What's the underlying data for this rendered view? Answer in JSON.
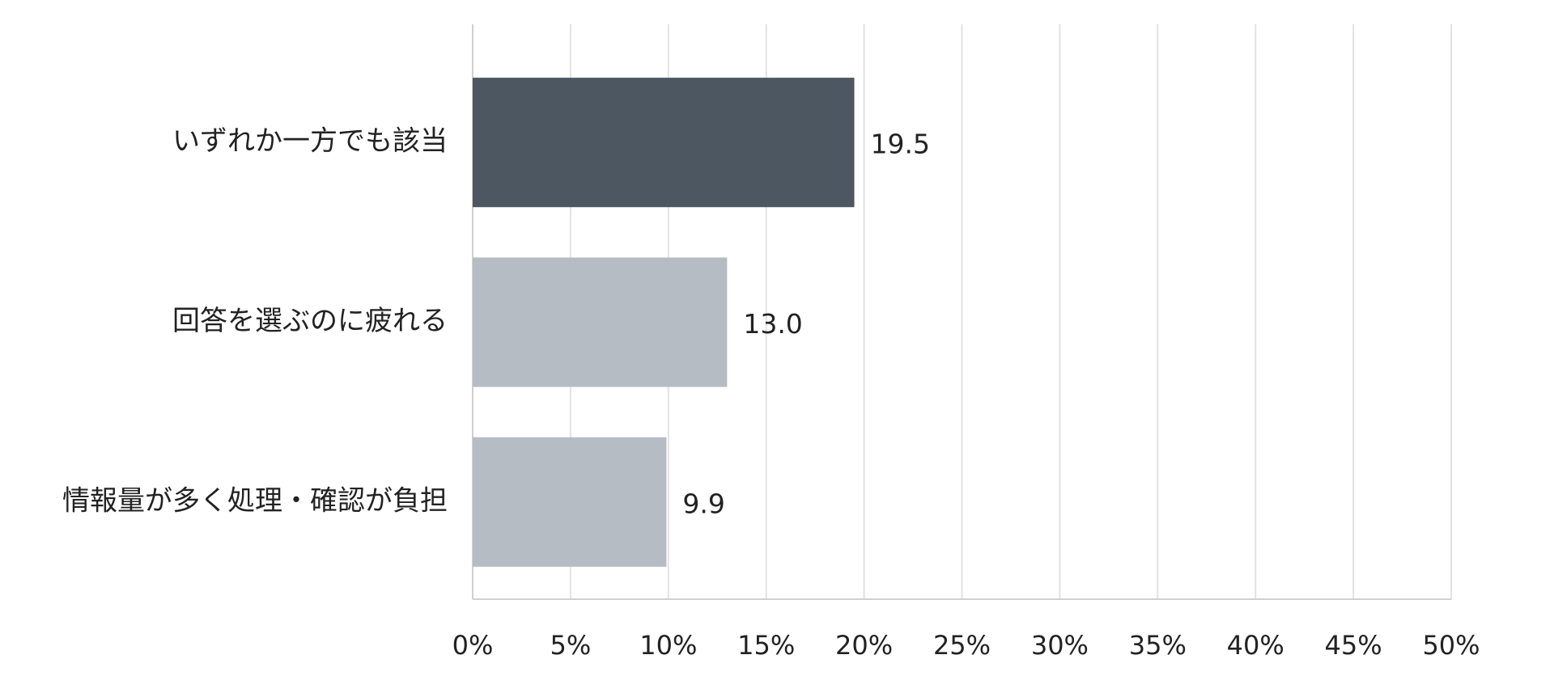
{
  "chart_data": {
    "type": "hbar",
    "categories": [
      "いずれか一方でも該当",
      "回答を選ぶのに疲れる",
      "情報量が多く処理・確認が負担"
    ],
    "values": [
      19.5,
      13.0,
      9.9
    ],
    "value_labels": [
      "19.5",
      "13.0",
      "9.9"
    ],
    "colors": [
      "#4d5761",
      "#b5bcc3",
      "#b5bcc3"
    ],
    "xlim": [
      0,
      50
    ],
    "xticks": [
      {
        "value": 0,
        "label": "0%"
      },
      {
        "value": 5,
        "label": "5%"
      },
      {
        "value": 10,
        "label": "10%"
      },
      {
        "value": 15,
        "label": "15%"
      },
      {
        "value": 20,
        "label": "20%"
      },
      {
        "value": 25,
        "label": "25%"
      },
      {
        "value": 30,
        "label": "30%"
      },
      {
        "value": 35,
        "label": "35%"
      },
      {
        "value": 40,
        "label": "40%"
      },
      {
        "value": 45,
        "label": "45%"
      },
      {
        "value": 50,
        "label": "50%"
      }
    ],
    "grid": true
  }
}
